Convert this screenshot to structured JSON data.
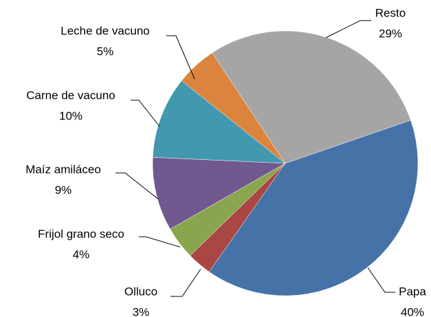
{
  "chart_data": {
    "type": "pie",
    "categories": [
      "Papa",
      "Olluco",
      "Frijol grano seco",
      "Maíz amiláceo",
      "Carne de vacuno",
      "Leche de vacuno",
      "Resto"
    ],
    "values": [
      40,
      3,
      4,
      9,
      10,
      5,
      29
    ],
    "value_labels": [
      "40%",
      "3%",
      "4%",
      "9%",
      "10%",
      "5%",
      "29%"
    ],
    "colors": [
      "#4572a7",
      "#aa4643",
      "#89a54e",
      "#71588f",
      "#4198af",
      "#db843d",
      "#a5a5a5"
    ]
  }
}
